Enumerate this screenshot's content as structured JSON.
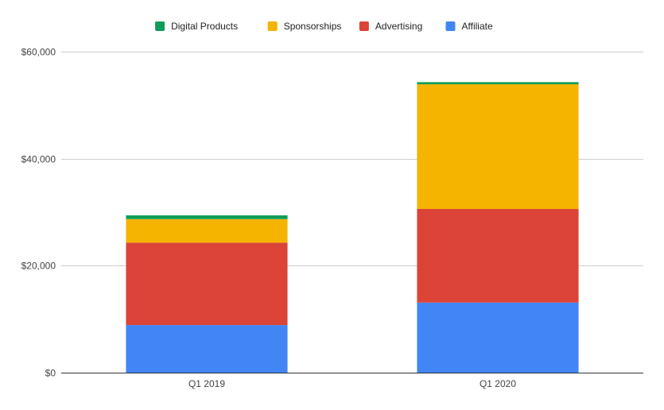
{
  "chart_data": {
    "type": "bar",
    "stacked": true,
    "categories": [
      "Q1 2019",
      "Q1 2020"
    ],
    "series": [
      {
        "name": "Affiliate",
        "color": "#4285F4",
        "values": [
          8900,
          13100
        ]
      },
      {
        "name": "Advertising",
        "color": "#DB4437",
        "values": [
          15400,
          17500
        ]
      },
      {
        "name": "Sponsorships",
        "color": "#F4B400",
        "values": [
          4400,
          23300
        ]
      },
      {
        "name": "Digital Products",
        "color": "#0F9D58",
        "values": [
          700,
          400
        ]
      }
    ],
    "legend_order": [
      "Digital Products",
      "Sponsorships",
      "Advertising",
      "Affiliate"
    ],
    "legend_position": "top",
    "ylim": [
      0,
      60000
    ],
    "yticks": [
      0,
      20000,
      40000,
      60000
    ],
    "ytick_labels": [
      "$0",
      "$20,000",
      "$40,000",
      "$60,000"
    ],
    "grid": true,
    "title": "",
    "xlabel": "",
    "ylabel": ""
  }
}
